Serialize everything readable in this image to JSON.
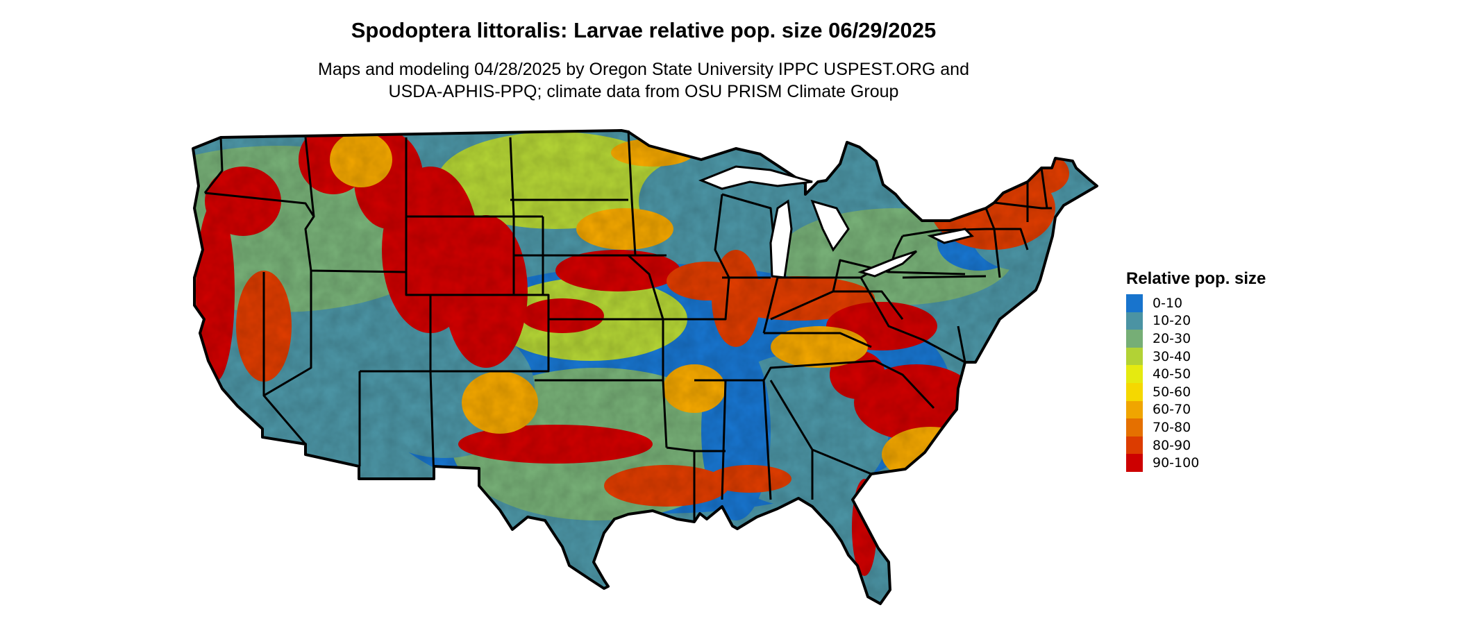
{
  "title": "Spodoptera littoralis: Larvae relative pop. size 06/29/2025",
  "subtitle_line1": "Maps and modeling 04/28/2025 by Oregon State University IPPC USPEST.ORG and",
  "subtitle_line2": "USDA-APHIS-PPQ; climate data from OSU PRISM Climate Group",
  "legend": {
    "title": "Relative pop. size",
    "items": [
      {
        "label": "0-10",
        "color": "#1874cd"
      },
      {
        "label": "10-20",
        "color": "#4b93a3"
      },
      {
        "label": "20-30",
        "color": "#76ae76"
      },
      {
        "label": "30-40",
        "color": "#b2d235"
      },
      {
        "label": "40-50",
        "color": "#e5ea10"
      },
      {
        "label": "50-60",
        "color": "#f5d800"
      },
      {
        "label": "60-70",
        "color": "#f0a500"
      },
      {
        "label": "70-80",
        "color": "#e57000"
      },
      {
        "label": "80-90",
        "color": "#dc3c00"
      },
      {
        "label": "90-100",
        "color": "#cd0000"
      }
    ]
  }
}
